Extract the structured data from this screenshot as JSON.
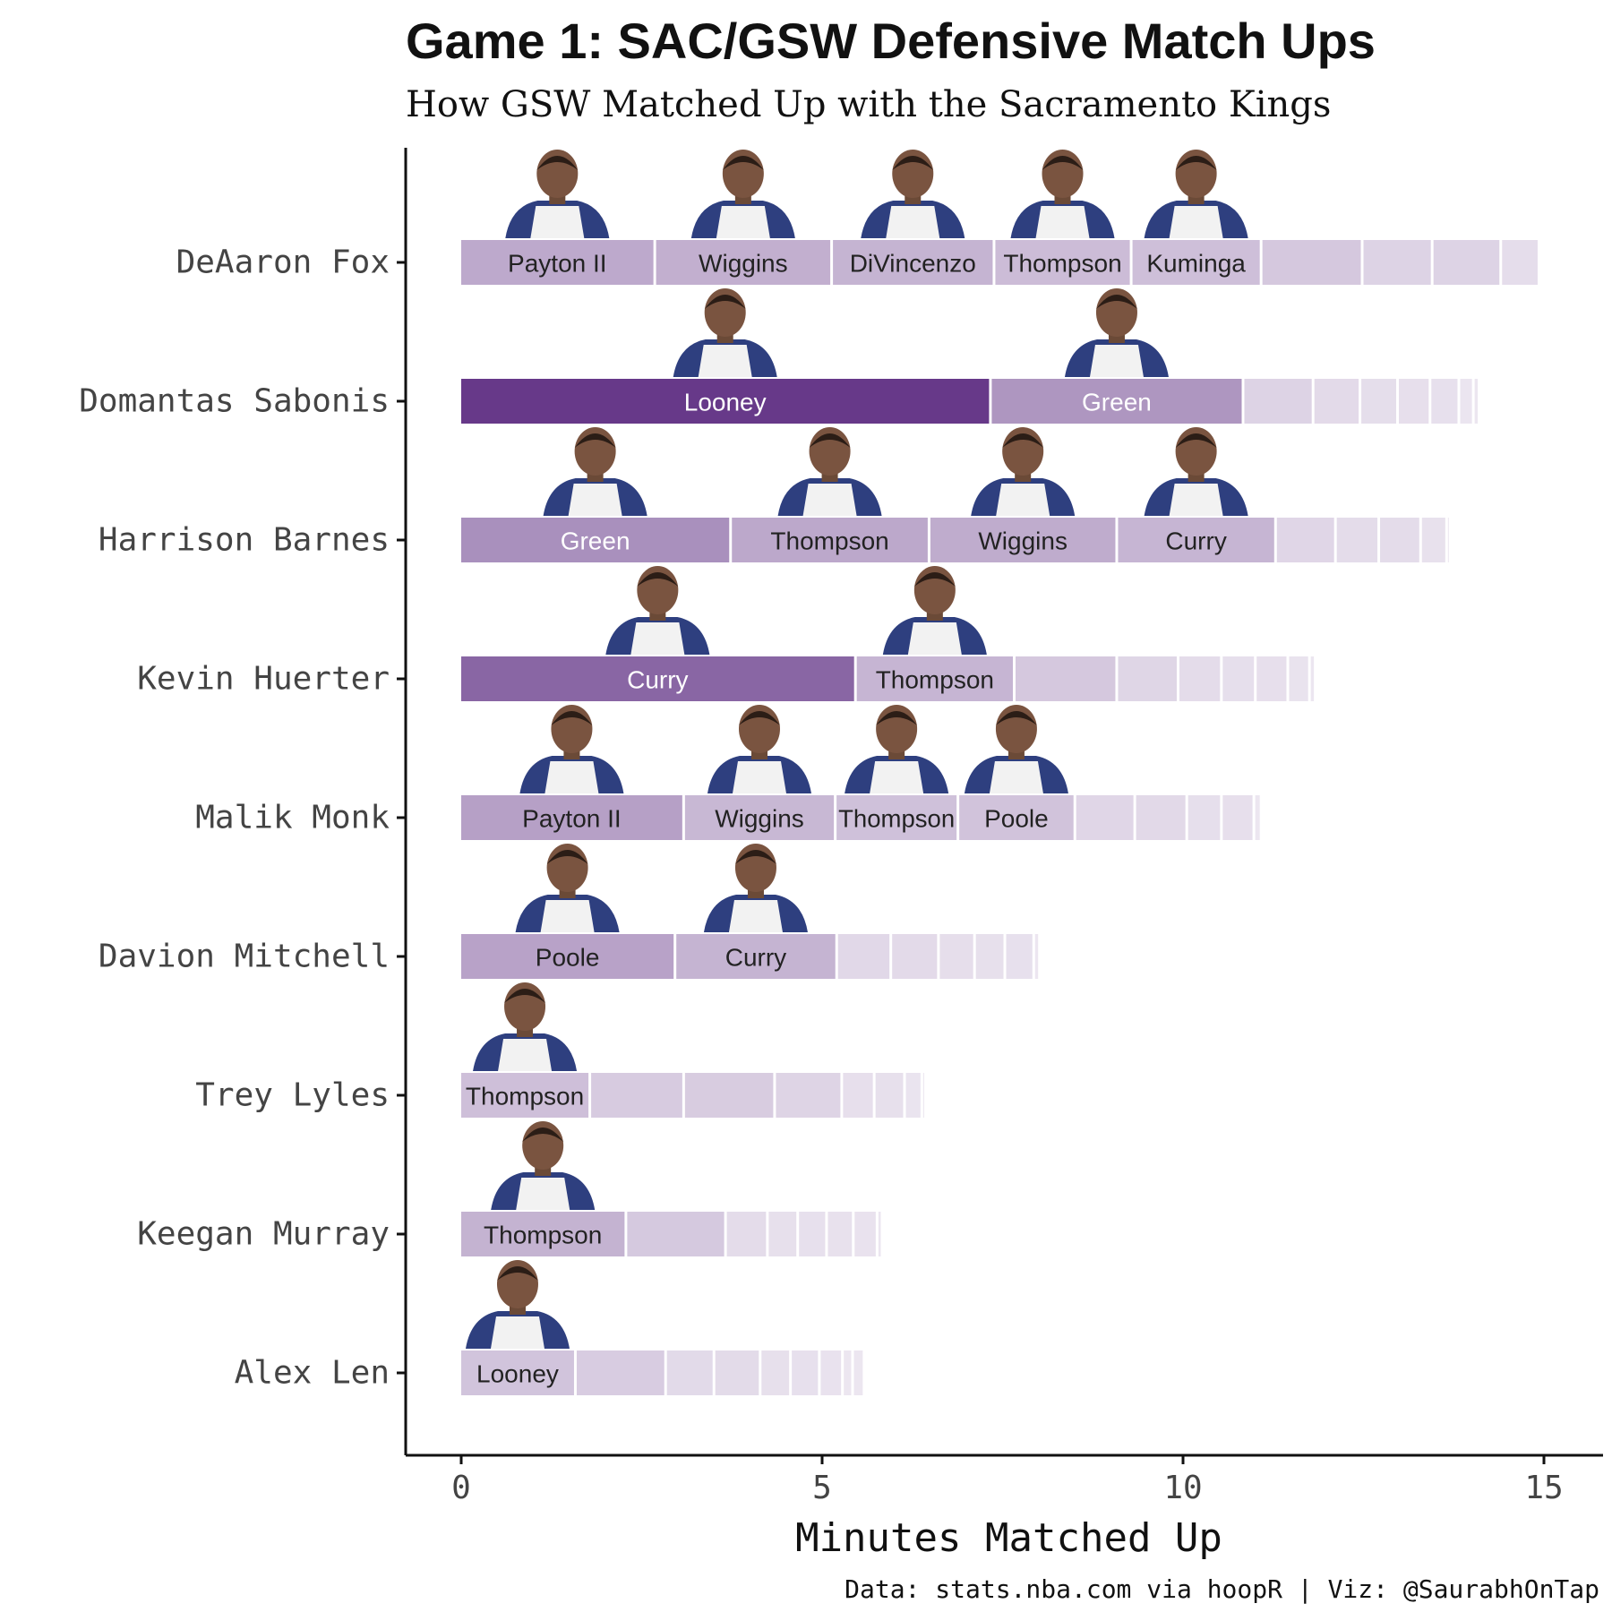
{
  "title": "Game 1: SAC/GSW Defensive Match Ups",
  "subtitle": "How GSW Matched Up with the Sacramento Kings",
  "caption": "Data: stats.nba.com via hoopR | Viz: @SaurabhOnTap",
  "colors": {
    "accent": "#5e2e82",
    "tick_text": "#444444",
    "axis": "#111111"
  },
  "chart_data": {
    "type": "bar",
    "orientation": "horizontal",
    "stacked": true,
    "xlabel": "Minutes Matched Up",
    "xlim": [
      0,
      15.5
    ],
    "x_ticks": [
      0,
      5,
      10,
      15
    ],
    "grid": false,
    "legend": "none",
    "categories": [
      {
        "player": "DeAaron Fox",
        "segments": [
          {
            "defender": "Payton II",
            "minutes": 2.7
          },
          {
            "defender": "Wiggins",
            "minutes": 2.45
          },
          {
            "defender": "DiVincenzo",
            "minutes": 2.25
          },
          {
            "defender": "Thompson",
            "minutes": 1.9
          },
          {
            "defender": "Kuminga",
            "minutes": 1.8
          },
          {
            "defender": "",
            "minutes": 1.4
          },
          {
            "defender": "",
            "minutes": 0.97
          },
          {
            "defender": "",
            "minutes": 0.95
          },
          {
            "defender": "",
            "minutes": 0.53
          }
        ]
      },
      {
        "player": "Domantas Sabonis",
        "segments": [
          {
            "defender": "Looney",
            "minutes": 7.35
          },
          {
            "defender": "Green",
            "minutes": 3.5
          },
          {
            "defender": "",
            "minutes": 0.97
          },
          {
            "defender": "",
            "minutes": 0.65
          },
          {
            "defender": "",
            "minutes": 0.52
          },
          {
            "defender": "",
            "minutes": 0.45
          },
          {
            "defender": "",
            "minutes": 0.4
          },
          {
            "defender": "",
            "minutes": 0.2
          },
          {
            "defender": "",
            "minutes": 0.08
          }
        ]
      },
      {
        "player": "Harrison Barnes",
        "segments": [
          {
            "defender": "Green",
            "minutes": 3.75
          },
          {
            "defender": "Thompson",
            "minutes": 2.75
          },
          {
            "defender": "Wiggins",
            "minutes": 2.6
          },
          {
            "defender": "Curry",
            "minutes": 2.2
          },
          {
            "defender": "",
            "minutes": 0.83
          },
          {
            "defender": "",
            "minutes": 0.6
          },
          {
            "defender": "",
            "minutes": 0.58
          },
          {
            "defender": "",
            "minutes": 0.36
          },
          {
            "defender": "",
            "minutes": 0.04
          }
        ]
      },
      {
        "player": "Kevin Huerter",
        "segments": [
          {
            "defender": "Curry",
            "minutes": 5.48
          },
          {
            "defender": "Thompson",
            "minutes": 2.2
          },
          {
            "defender": "",
            "minutes": 1.42
          },
          {
            "defender": "",
            "minutes": 0.85
          },
          {
            "defender": "",
            "minutes": 0.6
          },
          {
            "defender": "",
            "minutes": 0.47
          },
          {
            "defender": "",
            "minutes": 0.45
          },
          {
            "defender": "",
            "minutes": 0.3
          },
          {
            "defender": "",
            "minutes": 0.08
          }
        ]
      },
      {
        "player": "Malik Monk",
        "segments": [
          {
            "defender": "Payton II",
            "minutes": 3.1
          },
          {
            "defender": "Wiggins",
            "minutes": 2.1
          },
          {
            "defender": "Thompson",
            "minutes": 1.7
          },
          {
            "defender": "Poole",
            "minutes": 1.62
          },
          {
            "defender": "",
            "minutes": 0.83
          },
          {
            "defender": "",
            "minutes": 0.72
          },
          {
            "defender": "",
            "minutes": 0.48
          },
          {
            "defender": "",
            "minutes": 0.45
          },
          {
            "defender": "",
            "minutes": 0.1
          }
        ]
      },
      {
        "player": "Davion Mitchell",
        "segments": [
          {
            "defender": "Poole",
            "minutes": 2.98
          },
          {
            "defender": "Curry",
            "minutes": 2.24
          },
          {
            "defender": "",
            "minutes": 0.75
          },
          {
            "defender": "",
            "minutes": 0.66
          },
          {
            "defender": "",
            "minutes": 0.5
          },
          {
            "defender": "",
            "minutes": 0.42
          },
          {
            "defender": "",
            "minutes": 0.4
          },
          {
            "defender": "",
            "minutes": 0.08
          }
        ]
      },
      {
        "player": "Trey Lyles",
        "segments": [
          {
            "defender": "Thompson",
            "minutes": 1.8
          },
          {
            "defender": "",
            "minutes": 1.3
          },
          {
            "defender": "",
            "minutes": 1.26
          },
          {
            "defender": "",
            "minutes": 0.93
          },
          {
            "defender": "",
            "minutes": 0.45
          },
          {
            "defender": "",
            "minutes": 0.42
          },
          {
            "defender": "",
            "minutes": 0.24
          },
          {
            "defender": "",
            "minutes": 0.05
          }
        ]
      },
      {
        "player": "Keegan Murray",
        "segments": [
          {
            "defender": "Thompson",
            "minutes": 2.3
          },
          {
            "defender": "",
            "minutes": 1.38
          },
          {
            "defender": "",
            "minutes": 0.58
          },
          {
            "defender": "",
            "minutes": 0.42
          },
          {
            "defender": "",
            "minutes": 0.4
          },
          {
            "defender": "",
            "minutes": 0.37
          },
          {
            "defender": "",
            "minutes": 0.33
          },
          {
            "defender": "",
            "minutes": 0.07
          }
        ]
      },
      {
        "player": "Alex Len",
        "segments": [
          {
            "defender": "Looney",
            "minutes": 1.6
          },
          {
            "defender": "",
            "minutes": 1.25
          },
          {
            "defender": "",
            "minutes": 0.67
          },
          {
            "defender": "",
            "minutes": 0.64
          },
          {
            "defender": "",
            "minutes": 0.42
          },
          {
            "defender": "",
            "minutes": 0.4
          },
          {
            "defender": "",
            "minutes": 0.32
          },
          {
            "defender": "",
            "minutes": 0.14
          },
          {
            "defender": "",
            "minutes": 0.16
          }
        ]
      }
    ]
  }
}
